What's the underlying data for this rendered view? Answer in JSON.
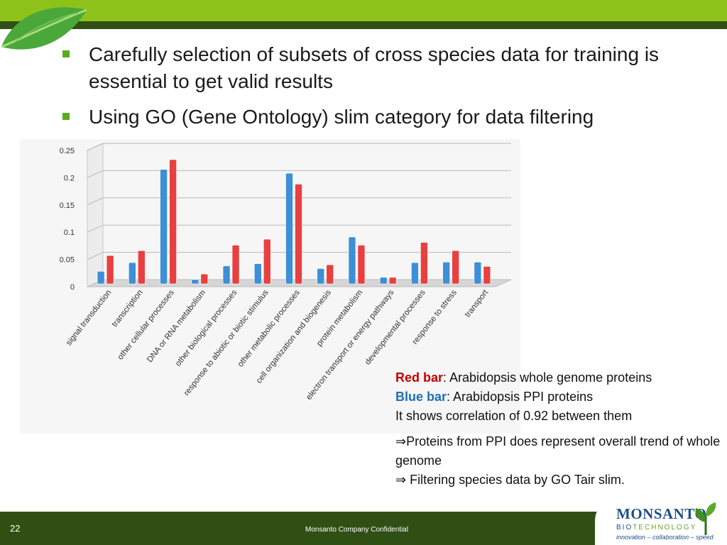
{
  "bullets": [
    "Carefully selection of subsets of cross species data for training is essential to get valid results",
    "Using GO (Gene Ontology) slim category for data filtering"
  ],
  "legend": {
    "red_label": "Red bar",
    "red_text": ": Arabidopsis whole genome proteins",
    "blue_label": "Blue bar",
    "blue_text": ": Arabidopsis PPI proteins",
    "correlation": "It shows correlation of 0.92 between them",
    "conclusion1": "⇒Proteins from PPI does represent overall trend of whole genome",
    "conclusion2": "⇒ Filtering species data by GO Tair slim."
  },
  "footer": {
    "page": "22",
    "confidential": "Monsanto Company Confidential"
  },
  "logo": {
    "name": "MONSANTO",
    "sub_prefix": "BIO",
    "sub_suffix": "TECHNOLOGY",
    "tagline": "innovation – collaboration – speed"
  },
  "colors": {
    "red_series": "#e84040",
    "blue_series": "#3d8fd6",
    "topbar": "#8cc21a",
    "footer": "#2f4f14"
  },
  "chart_data": {
    "type": "bar",
    "categories": [
      "signal transduction",
      "transcription",
      "other cellular processes",
      "DNA or RNA metabolism",
      "other biological processes",
      "response to abiotic or biotic stimulus",
      "other metabolic processes",
      "cell organization and biogenesis",
      "protein metabolism",
      "electron transport or energy pathways",
      "developmental processes",
      "response to stress",
      "transport"
    ],
    "series": [
      {
        "color": "#3d8fd6",
        "values": [
          0.023,
          0.039,
          0.21,
          0.008,
          0.033,
          0.037,
          0.203,
          0.028,
          0.086,
          0.012,
          0.039,
          0.04,
          0.04
        ]
      },
      {
        "color": "#e84040",
        "values": [
          0.052,
          0.061,
          0.228,
          0.018,
          0.071,
          0.082,
          0.183,
          0.035,
          0.071,
          0.012,
          0.076,
          0.061,
          0.032
        ]
      }
    ],
    "yticks": [
      "0",
      "0.05",
      "0.1",
      "0.15",
      "0.2",
      "0.25"
    ],
    "ylim": [
      0,
      0.25
    ],
    "grid": true
  }
}
